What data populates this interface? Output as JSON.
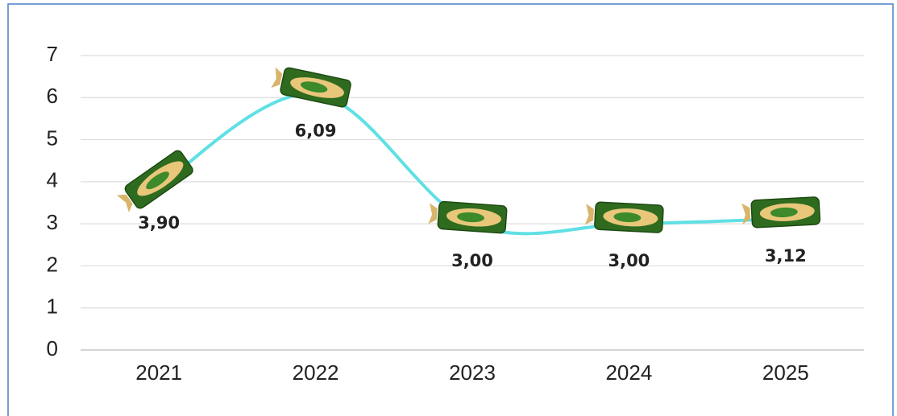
{
  "chart_data": {
    "type": "line",
    "categories": [
      "2021",
      "2022",
      "2023",
      "2024",
      "2025"
    ],
    "values": [
      3.9,
      6.09,
      3.0,
      3.0,
      3.12
    ],
    "value_labels": [
      "3,90",
      "6,09",
      "3,00",
      "3,00",
      "3,12"
    ],
    "color": "#5fe0e4",
    "ylim": [
      0,
      7
    ],
    "yticks": [
      0,
      1,
      2,
      3,
      4,
      5,
      6,
      7
    ],
    "grid": true
  }
}
